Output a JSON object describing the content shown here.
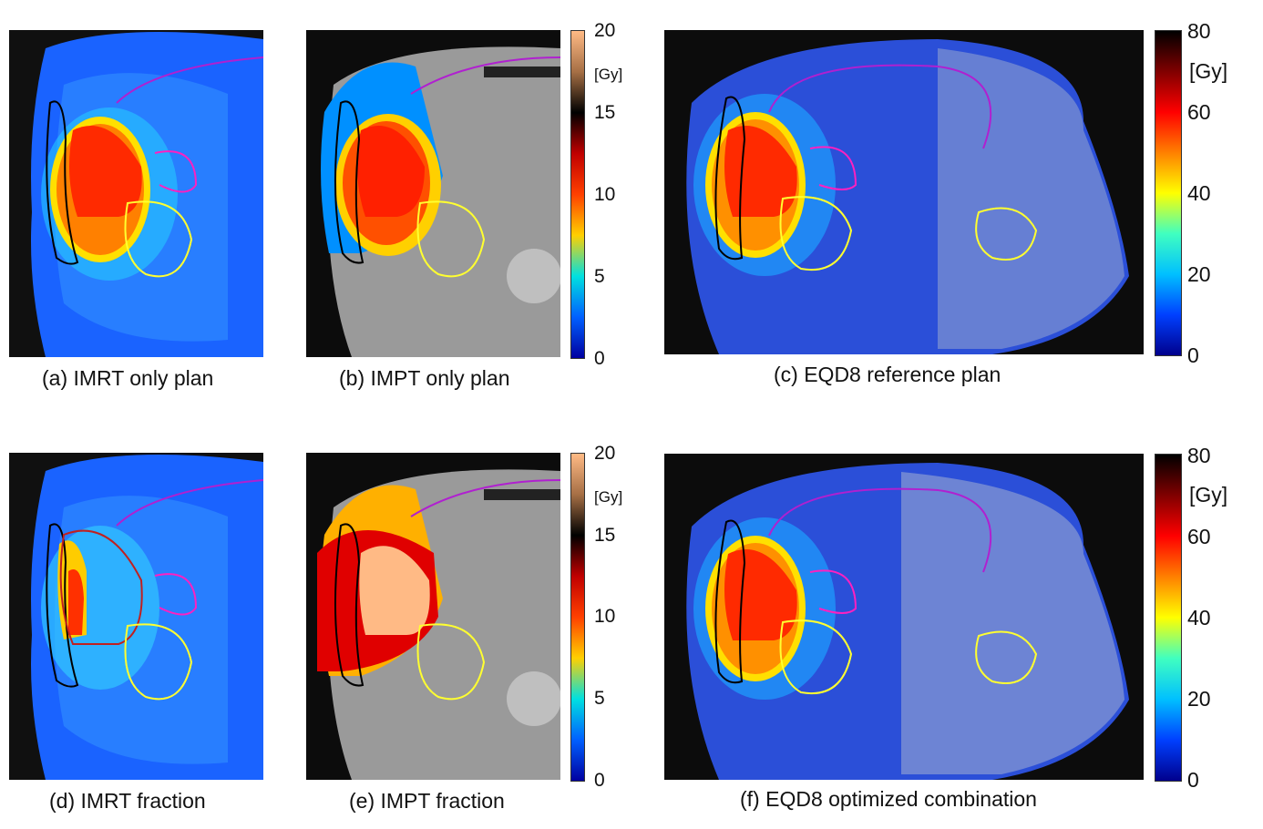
{
  "panels": [
    {
      "id": "a",
      "caption": "(a) IMRT only plan"
    },
    {
      "id": "b",
      "caption": "(b) IMPT only plan"
    },
    {
      "id": "c",
      "caption": "(c) EQD8 reference plan"
    },
    {
      "id": "d",
      "caption": "(d) IMRT fraction"
    },
    {
      "id": "e",
      "caption": "(e) IMPT fraction"
    },
    {
      "id": "f",
      "caption": "(f) EQD8 optimized combination"
    }
  ],
  "colorbar_small": {
    "unit": "[Gy]",
    "ticks": [
      "20",
      "15",
      "10",
      "5",
      "0"
    ],
    "colors": [
      "#ffba85",
      "#a66f45",
      "#000000",
      "#c00000",
      "#ff4000",
      "#ffd000",
      "#00e0e0",
      "#0060ff",
      "#0000a0"
    ]
  },
  "colorbar_large": {
    "unit": "[Gy]",
    "ticks": [
      "80",
      "60",
      "40",
      "20",
      "0"
    ],
    "colors": [
      "#000000",
      "#800000",
      "#ff0000",
      "#ff8000",
      "#ffff00",
      "#40ffc0",
      "#00c0ff",
      "#0040ff",
      "#00008c"
    ]
  }
}
